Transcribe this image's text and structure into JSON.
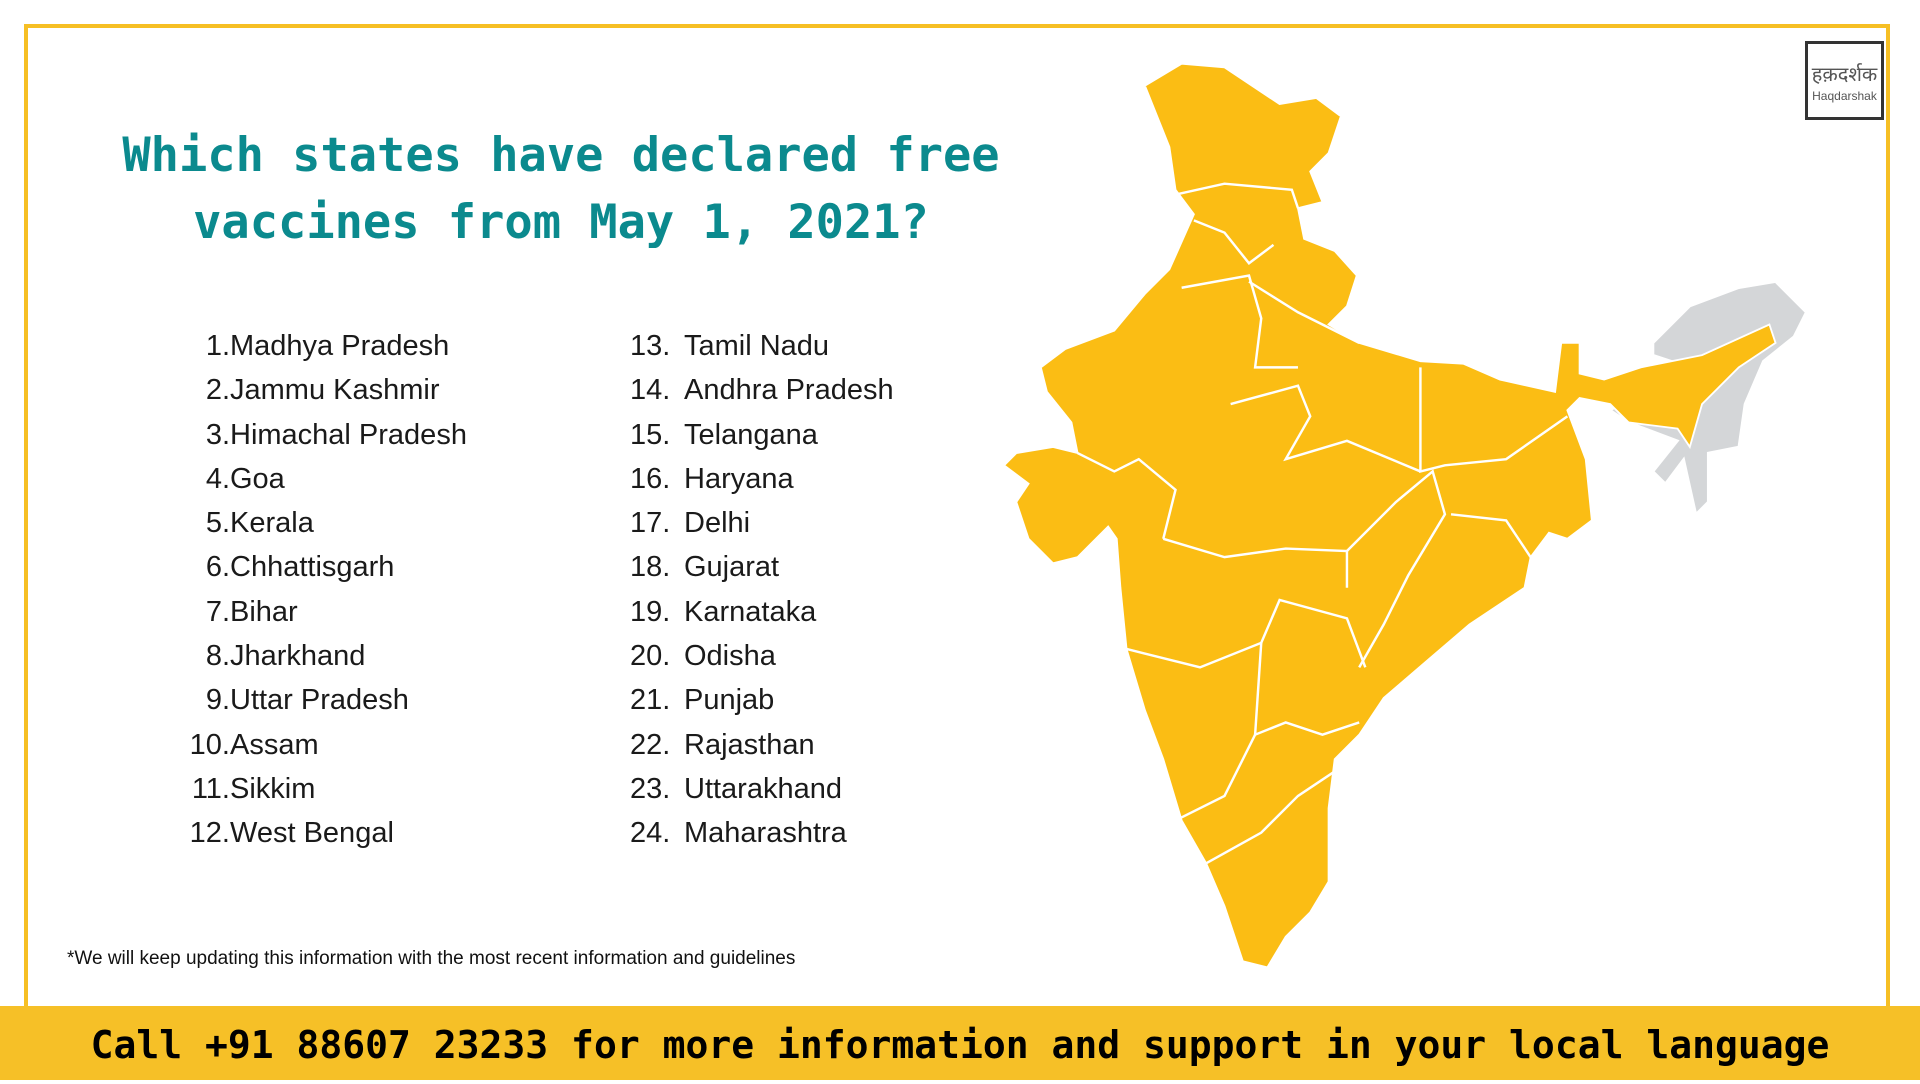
{
  "title_line1": "Which states have declared free",
  "title_line2": "vaccines from May 1, 2021?",
  "logo": {
    "hindi": "हक़दर्शक",
    "english": "Haqdarshak"
  },
  "states": [
    "Madhya Pradesh",
    "Jammu Kashmir",
    "Himachal Pradesh",
    "Goa",
    "Kerala",
    "Chhattisgarh",
    "Bihar",
    "Jharkhand",
    "Uttar Pradesh",
    "Assam",
    "Sikkim",
    "West Bengal",
    "Tamil Nadu",
    "Andhra Pradesh",
    "Telangana",
    "Haryana",
    "Delhi",
    "Gujarat",
    "Karnataka",
    "Odisha",
    "Punjab",
    "Rajasthan",
    "Uttarakhand",
    "Maharashtra"
  ],
  "footnote": "*We will keep updating this information with the most recent information and guidelines",
  "footer": "Call +91 88607 23233 for more information and support in your local language",
  "colors": {
    "accent": "#f6c027",
    "title": "#0b8a8e",
    "map_free": "#fbbd14",
    "map_other": "#d4d6d8"
  }
}
